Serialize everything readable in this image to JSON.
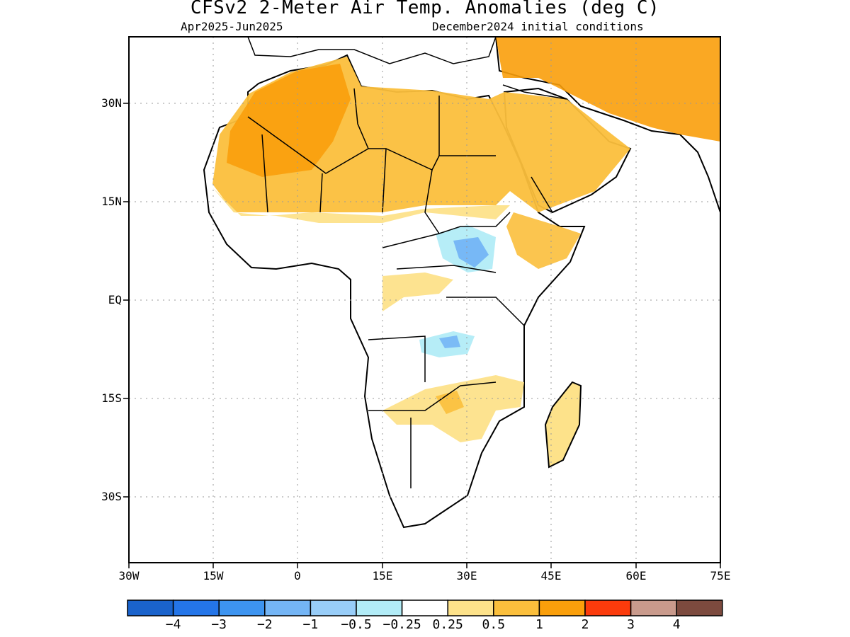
{
  "header": {
    "title": "CFSv2 2-Meter Air Temp. Anomalies (deg C)",
    "period": "Apr2025-Jun2025",
    "init": "December2024 initial conditions"
  },
  "axes": {
    "lon_labels": [
      "30W",
      "15W",
      "0",
      "15E",
      "30E",
      "45E",
      "60E",
      "75E"
    ],
    "lat_labels": [
      "30N",
      "15N",
      "EQ",
      "15S",
      "30S"
    ],
    "lon_range": [
      -30,
      75
    ],
    "lat_range": [
      -40,
      40
    ]
  },
  "colorbar": {
    "colors": [
      "#1a63cc",
      "#2475e8",
      "#3d94f0",
      "#74b5f5",
      "#98cdf8",
      "#b2ecf7",
      "#ffffff",
      "#fde28a",
      "#fbbf3c",
      "#fa9f0b",
      "#fb3b0c",
      "#c99a8c",
      "#7c4a3e"
    ],
    "labels": [
      "−4",
      "−3",
      "−2",
      "−1",
      "−0.5",
      "−0.25",
      "0.25",
      "0.5",
      "1",
      "2",
      "3",
      "4"
    ]
  }
}
